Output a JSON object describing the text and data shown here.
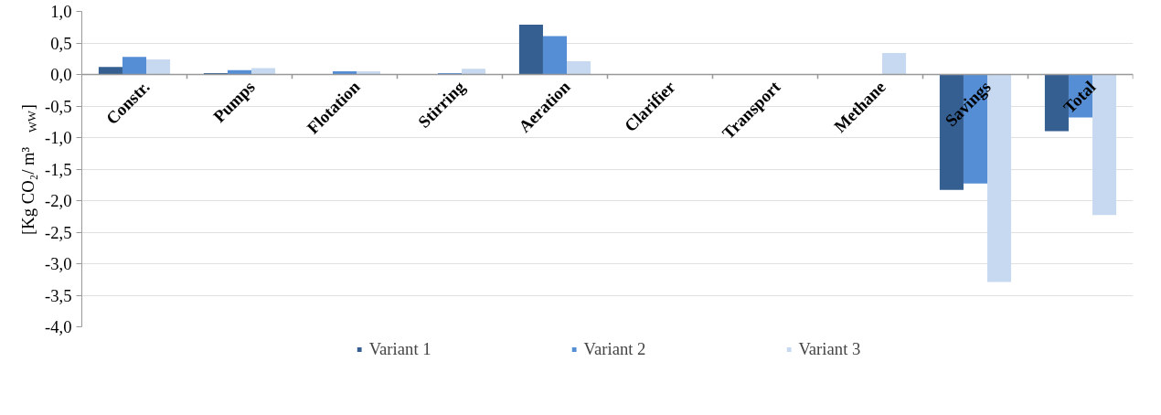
{
  "chart_data": {
    "type": "bar",
    "ylabel": "[Kg CO₂/ m³$_{WW}$]",
    "categories": [
      "Constr.",
      "Pumps",
      "Flotation",
      "Stirring",
      "Aeration",
      "Clarifier",
      "Transport",
      "Methane",
      "Savings",
      "Total"
    ],
    "series": [
      {
        "name": "Variant 1",
        "color": "#355f91",
        "values": [
          0.12,
          0.02,
          0,
          0,
          0.79,
          0,
          0,
          0,
          -1.83,
          -0.9
        ]
      },
      {
        "name": "Variant 2",
        "color": "#558ed5",
        "values": [
          0.28,
          0.07,
          0.05,
          0.02,
          0.61,
          0,
          0,
          0,
          -1.73,
          -0.68
        ]
      },
      {
        "name": "Variant 3",
        "color": "#c6d9f0",
        "values": [
          0.24,
          0.1,
          0.05,
          0.09,
          0.21,
          0,
          0,
          0.34,
          -3.29,
          -2.23
        ]
      }
    ],
    "ylim": [
      -4,
      1
    ],
    "yticks": [
      {
        "value": -4,
        "label": "-4,0"
      },
      {
        "value": -3.5,
        "label": "-3,5"
      },
      {
        "value": -3,
        "label": "-3,0"
      },
      {
        "value": -2.5,
        "label": "-2,5"
      },
      {
        "value": -2,
        "label": "-2,0"
      },
      {
        "value": -1.5,
        "label": "-1,5"
      },
      {
        "value": -1,
        "label": "-1,0"
      },
      {
        "value": -0.5,
        "label": "-0,5"
      },
      {
        "value": 0,
        "label": "0,0"
      },
      {
        "value": 0.5,
        "label": "0,5"
      },
      {
        "value": 1,
        "label": "1,0"
      }
    ],
    "grid": "y",
    "legend": "bottom"
  }
}
